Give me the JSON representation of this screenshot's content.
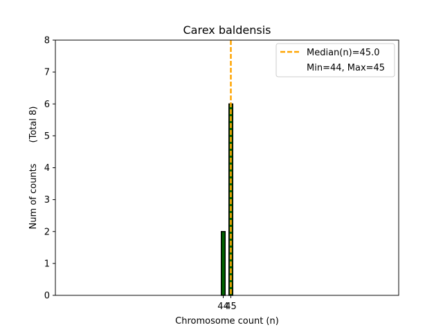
{
  "chart_data": {
    "type": "bar",
    "title": "Carex baldensis",
    "xlabel": "Chromosome count (n)",
    "ylabel": "Num of counts",
    "ylabel_total": "(Total 8)",
    "x_ticks": [
      44,
      45
    ],
    "y_ticks": [
      0,
      1,
      2,
      3,
      4,
      5,
      6,
      7,
      8
    ],
    "xlim": [
      22,
      67
    ],
    "ylim": [
      0,
      8
    ],
    "bars": [
      {
        "x": 44,
        "value": 2
      },
      {
        "x": 45,
        "value": 6
      }
    ],
    "bar_width": 0.5,
    "median": 45.0,
    "legend": {
      "position": "top-right",
      "entries": [
        "Median(n)=45.0",
        "Min=44, Max=45"
      ]
    },
    "colors": {
      "bar_fill": "#006400",
      "bar_edge": "#000000",
      "median_line": "#FFA500"
    }
  }
}
